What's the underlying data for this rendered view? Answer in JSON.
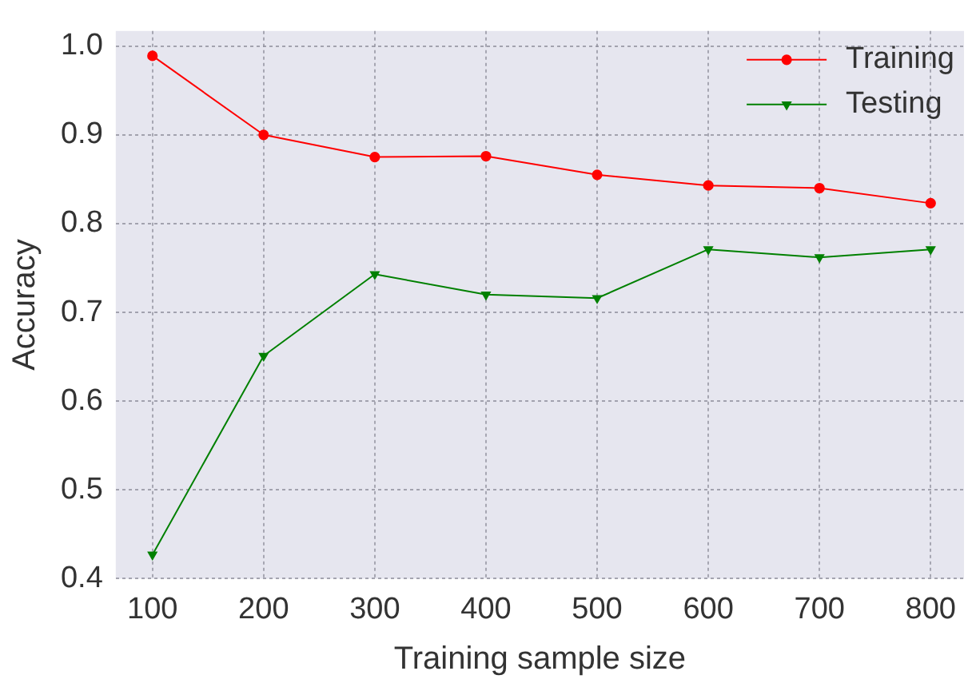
{
  "chart_data": {
    "type": "line",
    "xlabel": "Training sample size",
    "ylabel": "Accuracy",
    "x": [
      100,
      200,
      300,
      400,
      500,
      600,
      700,
      800
    ],
    "series": [
      {
        "name": "Training",
        "color": "#ff0000",
        "marker": "circle",
        "values": [
          0.989,
          0.9,
          0.875,
          0.876,
          0.855,
          0.843,
          0.84,
          0.823
        ]
      },
      {
        "name": "Testing",
        "color": "#008000",
        "marker": "triangle",
        "values": [
          0.427,
          0.651,
          0.743,
          0.72,
          0.716,
          0.771,
          0.762,
          0.771
        ]
      }
    ],
    "xlim": [
      67,
      830
    ],
    "xticks": [
      100,
      200,
      300,
      400,
      500,
      600,
      700,
      800
    ],
    "ylim": [
      0.4,
      1.017
    ],
    "yticks": [
      0.4,
      0.5,
      0.6,
      0.7,
      0.8,
      0.9,
      {
        "value": 1,
        "label": "1.0"
      }
    ],
    "grid": true,
    "legend": "top right",
    "line_style": "solid"
  }
}
